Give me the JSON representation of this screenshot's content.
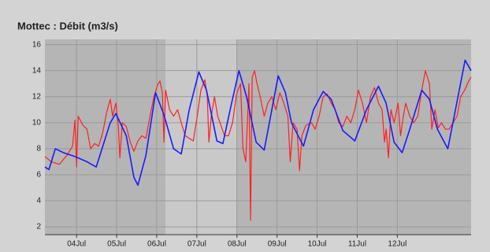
{
  "chart_data": {
    "type": "line",
    "title": "Mottec : Débit (m3/s)",
    "xlim": [
      3.21,
      13.84
    ],
    "xticks": [
      {
        "value": 4,
        "label": "04Jul"
      },
      {
        "value": 5,
        "label": "05Jul"
      },
      {
        "value": 6,
        "label": "06Jul"
      },
      {
        "value": 7,
        "label": "07Jul"
      },
      {
        "value": 8,
        "label": "08Jul"
      },
      {
        "value": 9,
        "label": "09Jul"
      },
      {
        "value": 10,
        "label": "10Jul"
      },
      {
        "value": 11,
        "label": "11Jul"
      },
      {
        "value": 12,
        "label": "12Jul"
      }
    ],
    "ylim": [
      1.4,
      16.4
    ],
    "yticks": [
      2,
      4,
      6,
      8,
      10,
      12,
      14,
      16
    ],
    "grid": true,
    "series": [
      {
        "color": "#ff2020",
        "x": [
          3.21,
          3.37,
          3.57,
          3.76,
          3.9,
          3.96,
          4.0,
          4.04,
          4.16,
          4.26,
          4.35,
          4.45,
          4.55,
          4.65,
          4.75,
          4.84,
          4.9,
          4.98,
          5.04,
          5.08,
          5.14,
          5.24,
          5.34,
          5.43,
          5.53,
          5.63,
          5.73,
          5.83,
          5.93,
          6.02,
          6.08,
          6.14,
          6.18,
          6.22,
          6.32,
          6.42,
          6.52,
          6.61,
          6.71,
          6.81,
          6.91,
          7.01,
          7.1,
          7.2,
          7.26,
          7.3,
          7.36,
          7.44,
          7.52,
          7.6,
          7.69,
          7.79,
          7.89,
          7.99,
          8.09,
          8.15,
          8.22,
          8.3,
          8.34,
          8.38,
          8.44,
          8.5,
          8.58,
          8.68,
          8.77,
          8.87,
          8.97,
          9.07,
          9.17,
          9.27,
          9.33,
          9.4,
          9.5,
          9.56,
          9.62,
          9.72,
          9.86,
          9.95,
          10.05,
          10.15,
          10.25,
          10.35,
          10.45,
          10.54,
          10.64,
          10.74,
          10.84,
          10.94,
          11.03,
          11.13,
          11.23,
          11.33,
          11.43,
          11.53,
          11.62,
          11.68,
          11.72,
          11.78,
          11.84,
          11.92,
          12.02,
          12.08,
          12.15,
          12.21,
          12.31,
          12.41,
          12.51,
          12.61,
          12.7,
          12.8,
          12.86,
          12.94,
          13.02,
          13.1,
          13.2,
          13.29,
          13.39,
          13.49,
          13.58,
          13.68,
          13.78,
          13.84
        ],
        "values": [
          7.4,
          7.0,
          6.8,
          7.5,
          8.2,
          10.2,
          6.6,
          10.5,
          9.8,
          9.5,
          8.0,
          8.4,
          8.2,
          9.2,
          10.8,
          11.8,
          10.5,
          11.5,
          9.8,
          7.3,
          10.0,
          9.7,
          8.5,
          7.8,
          8.6,
          9.0,
          8.8,
          10.5,
          12.0,
          12.9,
          13.2,
          12.3,
          8.5,
          12.5,
          11.0,
          10.5,
          11.0,
          10.0,
          9.0,
          8.8,
          8.6,
          10.5,
          12.5,
          13.3,
          12.0,
          8.5,
          10.5,
          12.0,
          10.5,
          9.8,
          9.0,
          9.0,
          10.0,
          12.2,
          13.0,
          8.0,
          7.0,
          13.0,
          2.5,
          13.5,
          14.0,
          13.0,
          12.0,
          10.5,
          11.5,
          12.0,
          11.0,
          12.3,
          11.5,
          10.5,
          7.0,
          10.0,
          9.5,
          6.3,
          9.0,
          9.8,
          10.0,
          9.5,
          10.5,
          12.0,
          12.2,
          11.5,
          11.0,
          10.0,
          9.7,
          10.5,
          10.0,
          11.0,
          12.5,
          11.5,
          10.0,
          12.0,
          12.7,
          11.5,
          11.0,
          8.5,
          9.5,
          7.3,
          11.0,
          10.0,
          11.5,
          9.0,
          10.5,
          11.5,
          10.5,
          10.0,
          10.5,
          12.5,
          14.0,
          13.0,
          9.5,
          11.0,
          9.6,
          10.0,
          9.5,
          9.5,
          10.0,
          10.5,
          12.0,
          12.5,
          13.2,
          13.5
        ]
      },
      {
        "color": "#1a1aff",
        "x": [
          3.21,
          3.31,
          3.47,
          3.67,
          3.96,
          4.26,
          4.49,
          4.84,
          4.98,
          5.24,
          5.43,
          5.53,
          5.73,
          5.97,
          6.18,
          6.42,
          6.61,
          6.81,
          7.05,
          7.24,
          7.5,
          7.65,
          7.83,
          8.05,
          8.24,
          8.48,
          8.68,
          8.87,
          9.03,
          9.21,
          9.36,
          9.66,
          9.91,
          10.15,
          10.35,
          10.64,
          10.94,
          11.23,
          11.53,
          11.72,
          11.92,
          12.12,
          12.31,
          12.61,
          12.8,
          13.0,
          13.26,
          13.45,
          13.69,
          13.84
        ],
        "values": [
          6.6,
          6.4,
          8.0,
          7.7,
          7.4,
          7.0,
          6.6,
          10.0,
          10.7,
          9.0,
          5.8,
          5.2,
          7.5,
          12.3,
          10.6,
          8.0,
          7.6,
          11.0,
          13.9,
          12.5,
          8.6,
          8.4,
          11.0,
          14.0,
          12.0,
          8.5,
          7.9,
          11.0,
          13.6,
          12.3,
          10.0,
          8.2,
          11.0,
          12.4,
          11.8,
          9.4,
          8.6,
          11.0,
          12.8,
          11.5,
          8.5,
          7.7,
          9.5,
          12.5,
          11.8,
          9.5,
          8.0,
          11.0,
          14.8,
          14.0
        ]
      }
    ]
  }
}
